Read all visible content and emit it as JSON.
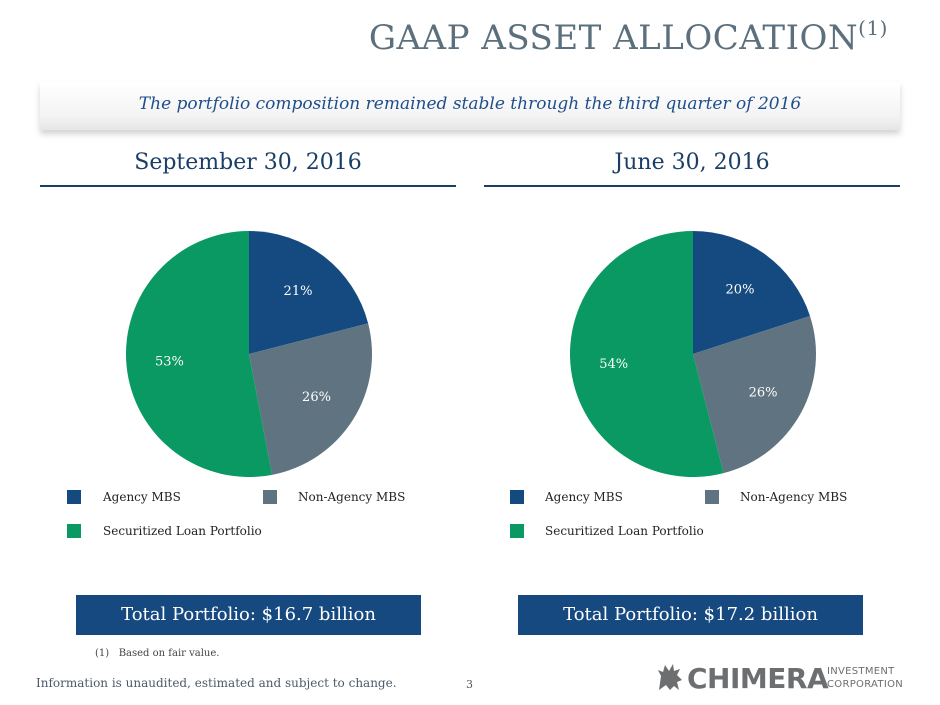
{
  "title": {
    "main": "GAAP ASSET ALLOCATION",
    "sup": "(1)"
  },
  "subtitle": "The portfolio composition remained stable through the third quarter of 2016",
  "colors": {
    "agency": "#154a80",
    "non_agency": "#5f7480",
    "securitized": "#0a9863",
    "navy": "#15497f"
  },
  "chart_data": [
    {
      "type": "pie",
      "title": "September 30, 2016",
      "categories": [
        "Agency MBS",
        "Non-Agency MBS",
        "Securitized Loan Portfolio"
      ],
      "values": [
        21,
        26,
        53
      ],
      "labels": [
        "21%",
        "26%",
        "53%"
      ],
      "legend": "bottom",
      "total": "Total Portfolio: $16.7 billion"
    },
    {
      "type": "pie",
      "title": "June 30, 2016",
      "categories": [
        "Agency MBS",
        "Non-Agency MBS",
        "Securitized Loan Portfolio"
      ],
      "values": [
        20,
        26,
        54
      ],
      "labels": [
        "20%",
        "26%",
        "54%"
      ],
      "legend": "bottom",
      "total": "Total Portfolio: $17.2 billion"
    }
  ],
  "footnote": "(1)   Based on fair value.",
  "disclaimer": "Information is unaudited, estimated and subject to change.",
  "page_number": "3",
  "logo": {
    "word": "CHIMERA",
    "line1": "INVESTMENT",
    "line2": "CORPORATION"
  }
}
